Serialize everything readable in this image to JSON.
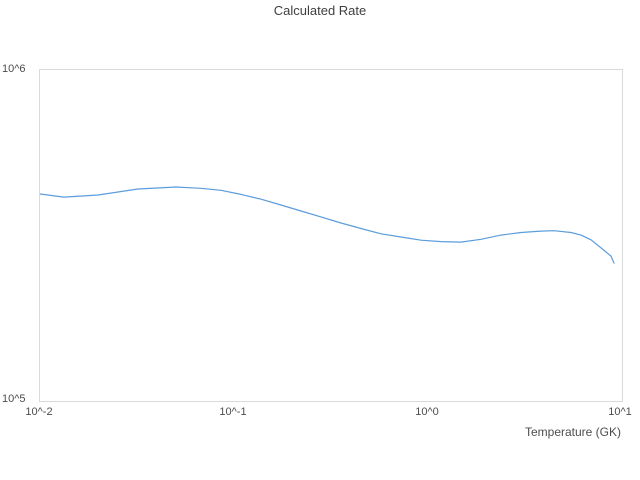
{
  "chart": {
    "title": "Calculated Rate",
    "x_axis_label": "Temperature (GK)",
    "x_tick_labels": [
      "10^-2",
      "10^-1",
      "10^0",
      "10^1"
    ],
    "y_tick_labels": [
      "10^5",
      "10^6"
    ],
    "colors": {
      "line": "#5b9cdc",
      "plot_border": "#d9d9d9",
      "title_text": "#3f3f3f",
      "tick_text": "#4d4d4d",
      "background": "#ffffff"
    }
  },
  "chart_data": {
    "type": "line",
    "title": "Calculated Rate",
    "xlabel": "Temperature (GK)",
    "ylabel": "",
    "x_scale": "log",
    "y_scale": "log",
    "xlim": [
      0.01,
      10
    ],
    "ylim": [
      100000,
      1000000
    ],
    "x_ticks": [
      0.01,
      0.1,
      1,
      10
    ],
    "y_ticks": [
      100000,
      1000000
    ],
    "grid": false,
    "legend": false,
    "series": [
      {
        "name": "Calculated Rate",
        "x": [
          0.01,
          0.0133,
          0.0199,
          0.032,
          0.0502,
          0.0676,
          0.0857,
          0.1087,
          0.1378,
          0.1747,
          0.2215,
          0.2808,
          0.3561,
          0.4514,
          0.5723,
          0.7257,
          0.9202,
          1.167,
          1.479,
          1.876,
          2.378,
          3.017,
          3.825,
          4.461,
          5.458,
          6.149,
          6.923,
          7.796,
          8.776,
          9.094
        ],
        "y": [
          422000,
          413000,
          419000,
          437000,
          443000,
          439000,
          433000,
          421000,
          407000,
          391000,
          375000,
          360000,
          345000,
          332000,
          320000,
          313000,
          306000,
          303000,
          302000,
          308000,
          317000,
          323000,
          326000,
          327000,
          323000,
          317000,
          307000,
          290000,
          274000,
          261000
        ]
      }
    ]
  }
}
